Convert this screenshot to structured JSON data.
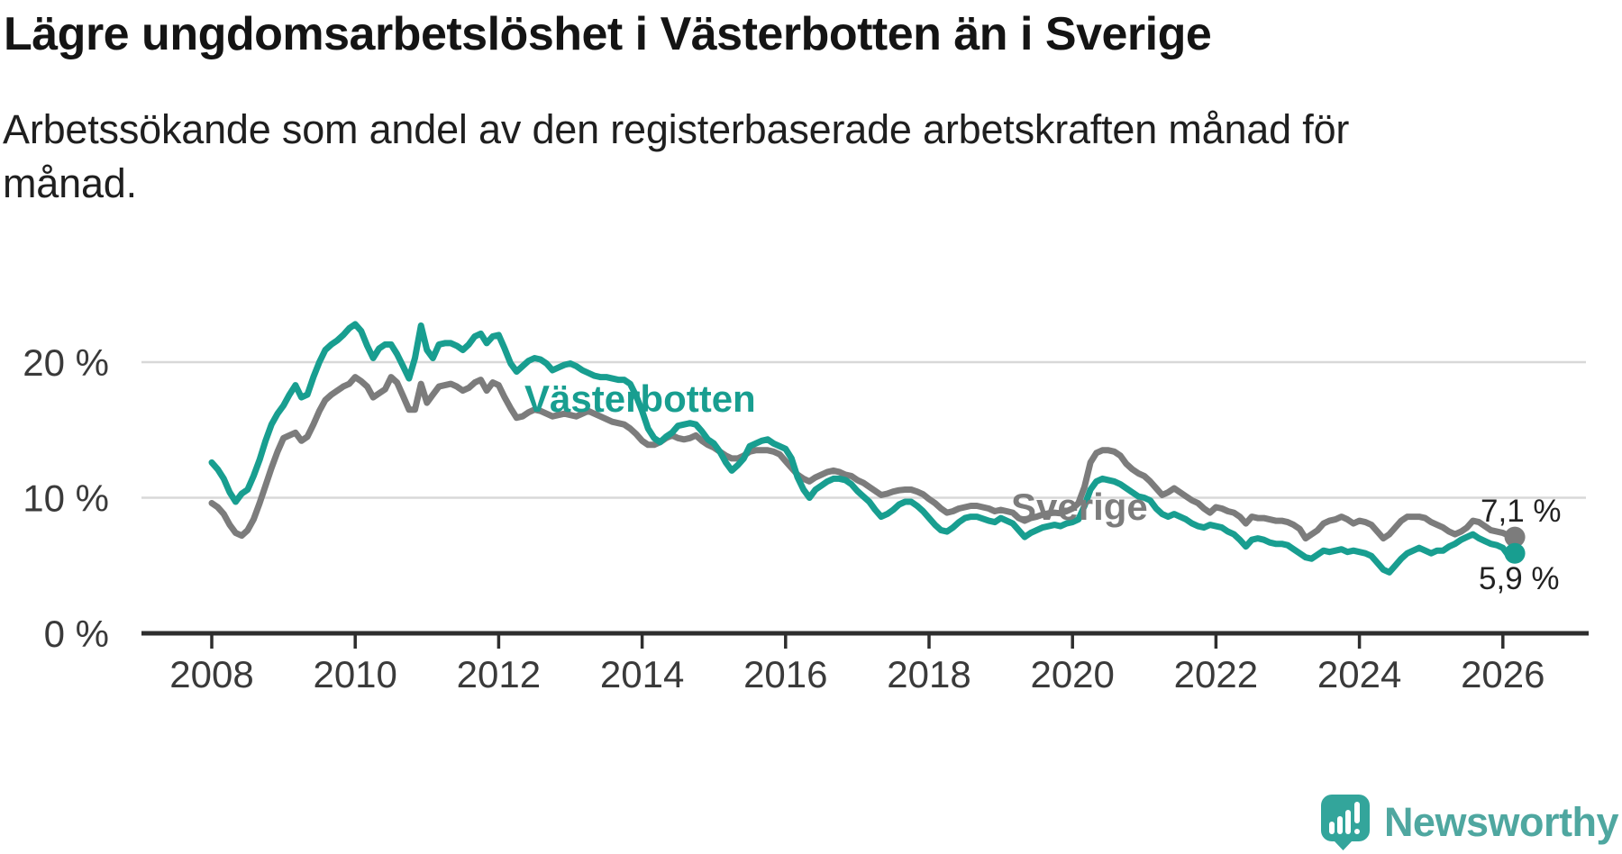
{
  "header": {
    "title": "Lägre ungdomsarbetslöshet i Västerbotten än i Sverige",
    "subtitle": "Arbetssökande som andel av den registerbaserade arbetskraften månad för månad."
  },
  "colors": {
    "vasterbotten": "#189E90",
    "sverige": "#7C7C7C",
    "value_label": "#222222",
    "axis_label": "#3A3A3A",
    "gridline": "#D8D8D8",
    "axis_line": "#2E2E2E",
    "brand_icon": "#33A59B",
    "brand_text": "#4FA7A0"
  },
  "chart_data": {
    "type": "line",
    "x_start": "2008-01",
    "x_end": "2026-03",
    "x_step": "1 month",
    "ylim": [
      0,
      24
    ],
    "grid": "horizontal",
    "y_ticks": [
      {
        "value": 0,
        "label": "0 %"
      },
      {
        "value": 10,
        "label": "10 %"
      },
      {
        "value": 20,
        "label": "20 %"
      }
    ],
    "x_ticks": [
      {
        "value": 2008,
        "label": "2008"
      },
      {
        "value": 2010,
        "label": "2010"
      },
      {
        "value": 2012,
        "label": "2012"
      },
      {
        "value": 2014,
        "label": "2014"
      },
      {
        "value": 2016,
        "label": "2016"
      },
      {
        "value": 2018,
        "label": "2018"
      },
      {
        "value": 2020,
        "label": "2020"
      },
      {
        "value": 2022,
        "label": "2022"
      },
      {
        "value": 2024,
        "label": "2024"
      },
      {
        "value": 2026,
        "label": "2026"
      }
    ],
    "series": [
      {
        "name": "Sverige",
        "color": "#7C7C7C",
        "end_label": "7,1 %",
        "end_value": 7.1,
        "values": [
          9.6,
          9.3,
          8.8,
          8.0,
          7.4,
          7.2,
          7.6,
          8.4,
          9.6,
          10.9,
          12.2,
          13.4,
          14.4,
          14.6,
          14.8,
          14.2,
          14.5,
          15.4,
          16.4,
          17.2,
          17.6,
          17.9,
          18.2,
          18.4,
          18.9,
          18.6,
          18.2,
          17.4,
          17.7,
          18.0,
          18.9,
          18.5,
          17.5,
          16.5,
          16.5,
          18.4,
          17.0,
          17.6,
          18.2,
          18.3,
          18.4,
          18.2,
          17.9,
          18.1,
          18.5,
          18.7,
          17.9,
          18.5,
          18.3,
          17.4,
          16.6,
          15.9,
          16.0,
          16.3,
          16.5,
          16.4,
          16.2,
          16.0,
          16.1,
          16.2,
          16.1,
          16.0,
          16.2,
          16.4,
          16.2,
          16.0,
          15.8,
          15.6,
          15.5,
          15.4,
          15.1,
          14.7,
          14.2,
          13.9,
          13.9,
          14.1,
          14.4,
          14.6,
          14.4,
          14.3,
          14.4,
          14.6,
          14.2,
          13.9,
          13.7,
          13.4,
          13.1,
          12.9,
          12.9,
          13.1,
          13.4,
          13.5,
          13.5,
          13.5,
          13.4,
          13.2,
          12.7,
          12.2,
          11.7,
          11.4,
          11.2,
          11.5,
          11.7,
          11.9,
          12.0,
          11.9,
          11.7,
          11.6,
          11.3,
          11.1,
          10.8,
          10.5,
          10.2,
          10.3,
          10.45,
          10.55,
          10.6,
          10.6,
          10.45,
          10.25,
          9.9,
          9.6,
          9.2,
          8.9,
          9.0,
          9.2,
          9.3,
          9.4,
          9.4,
          9.3,
          9.2,
          9.0,
          9.1,
          9.0,
          8.9,
          8.5,
          8.3,
          8.5,
          8.6,
          8.75,
          8.85,
          8.9,
          8.85,
          9.0,
          9.2,
          9.6,
          10.8,
          12.6,
          13.3,
          13.5,
          13.5,
          13.4,
          13.1,
          12.5,
          12.1,
          11.8,
          11.6,
          11.2,
          10.7,
          10.2,
          10.4,
          10.7,
          10.4,
          10.1,
          9.8,
          9.6,
          9.2,
          8.9,
          9.3,
          9.2,
          9.0,
          8.9,
          8.6,
          8.1,
          8.6,
          8.5,
          8.5,
          8.4,
          8.3,
          8.3,
          8.2,
          8.0,
          7.7,
          7.0,
          7.3,
          7.6,
          8.1,
          8.3,
          8.4,
          8.6,
          8.4,
          8.1,
          8.3,
          8.2,
          8.0,
          7.5,
          7.0,
          7.3,
          7.8,
          8.3,
          8.6,
          8.6,
          8.6,
          8.5,
          8.2,
          8.0,
          7.8,
          7.5,
          7.3,
          7.5,
          7.8,
          8.3,
          8.2,
          7.9,
          7.6,
          7.5,
          7.4,
          7.2,
          7.1
        ]
      },
      {
        "name": "Västerbotten",
        "color": "#189E90",
        "end_label": "5,9 %",
        "end_value": 5.9,
        "values": [
          12.6,
          12.1,
          11.4,
          10.4,
          9.7,
          10.3,
          10.6,
          11.6,
          12.8,
          14.2,
          15.4,
          16.2,
          16.8,
          17.6,
          18.3,
          17.4,
          17.6,
          18.9,
          20.0,
          20.9,
          21.3,
          21.6,
          22.0,
          22.5,
          22.8,
          22.3,
          21.2,
          20.3,
          21.0,
          21.3,
          21.3,
          20.6,
          19.7,
          18.8,
          20.3,
          22.7,
          20.9,
          20.3,
          21.3,
          21.4,
          21.4,
          21.2,
          20.9,
          21.3,
          21.9,
          22.1,
          21.4,
          21.9,
          22.0,
          21.0,
          19.9,
          19.3,
          19.7,
          20.1,
          20.3,
          20.2,
          19.9,
          19.4,
          19.6,
          19.8,
          19.9,
          19.7,
          19.4,
          19.2,
          19.0,
          18.9,
          18.9,
          18.8,
          18.7,
          18.7,
          18.4,
          17.5,
          16.4,
          15.1,
          14.4,
          14.1,
          14.5,
          14.8,
          15.3,
          15.4,
          15.5,
          15.4,
          14.9,
          14.3,
          14.0,
          13.4,
          12.6,
          12.0,
          12.4,
          12.9,
          13.8,
          14.0,
          14.2,
          14.3,
          14.0,
          13.8,
          13.6,
          12.9,
          11.5,
          10.6,
          10.0,
          10.6,
          10.9,
          11.2,
          11.4,
          11.4,
          11.3,
          11.0,
          10.5,
          10.1,
          9.7,
          9.1,
          8.6,
          8.8,
          9.1,
          9.5,
          9.7,
          9.7,
          9.4,
          9.0,
          8.5,
          8.0,
          7.6,
          7.5,
          7.8,
          8.2,
          8.5,
          8.6,
          8.6,
          8.45,
          8.3,
          8.2,
          8.5,
          8.3,
          8.1,
          7.6,
          7.1,
          7.4,
          7.6,
          7.8,
          7.9,
          8.0,
          7.9,
          8.1,
          8.2,
          8.4,
          9.4,
          10.6,
          11.2,
          11.4,
          11.3,
          11.2,
          11.0,
          10.7,
          10.4,
          10.1,
          10.0,
          9.8,
          9.2,
          8.8,
          8.6,
          8.8,
          8.6,
          8.4,
          8.1,
          7.9,
          7.8,
          8.0,
          7.9,
          7.8,
          7.5,
          7.3,
          6.9,
          6.4,
          6.9,
          7.0,
          6.9,
          6.7,
          6.6,
          6.6,
          6.5,
          6.2,
          5.9,
          5.6,
          5.5,
          5.8,
          6.1,
          6.0,
          6.1,
          6.2,
          6.0,
          6.1,
          6.0,
          5.9,
          5.7,
          5.2,
          4.7,
          4.5,
          5.0,
          5.5,
          5.9,
          6.1,
          6.3,
          6.1,
          5.9,
          6.1,
          6.1,
          6.4,
          6.6,
          6.9,
          7.1,
          7.3,
          7.0,
          6.8,
          6.6,
          6.5,
          6.3,
          5.7,
          5.9
        ]
      }
    ],
    "series_labels": [
      {
        "text": "Västerbotten",
        "color": "#189E90"
      },
      {
        "text": "Sverige",
        "color": "#7C7C7C"
      }
    ]
  },
  "footer": {
    "brand": "Newsworthy"
  }
}
